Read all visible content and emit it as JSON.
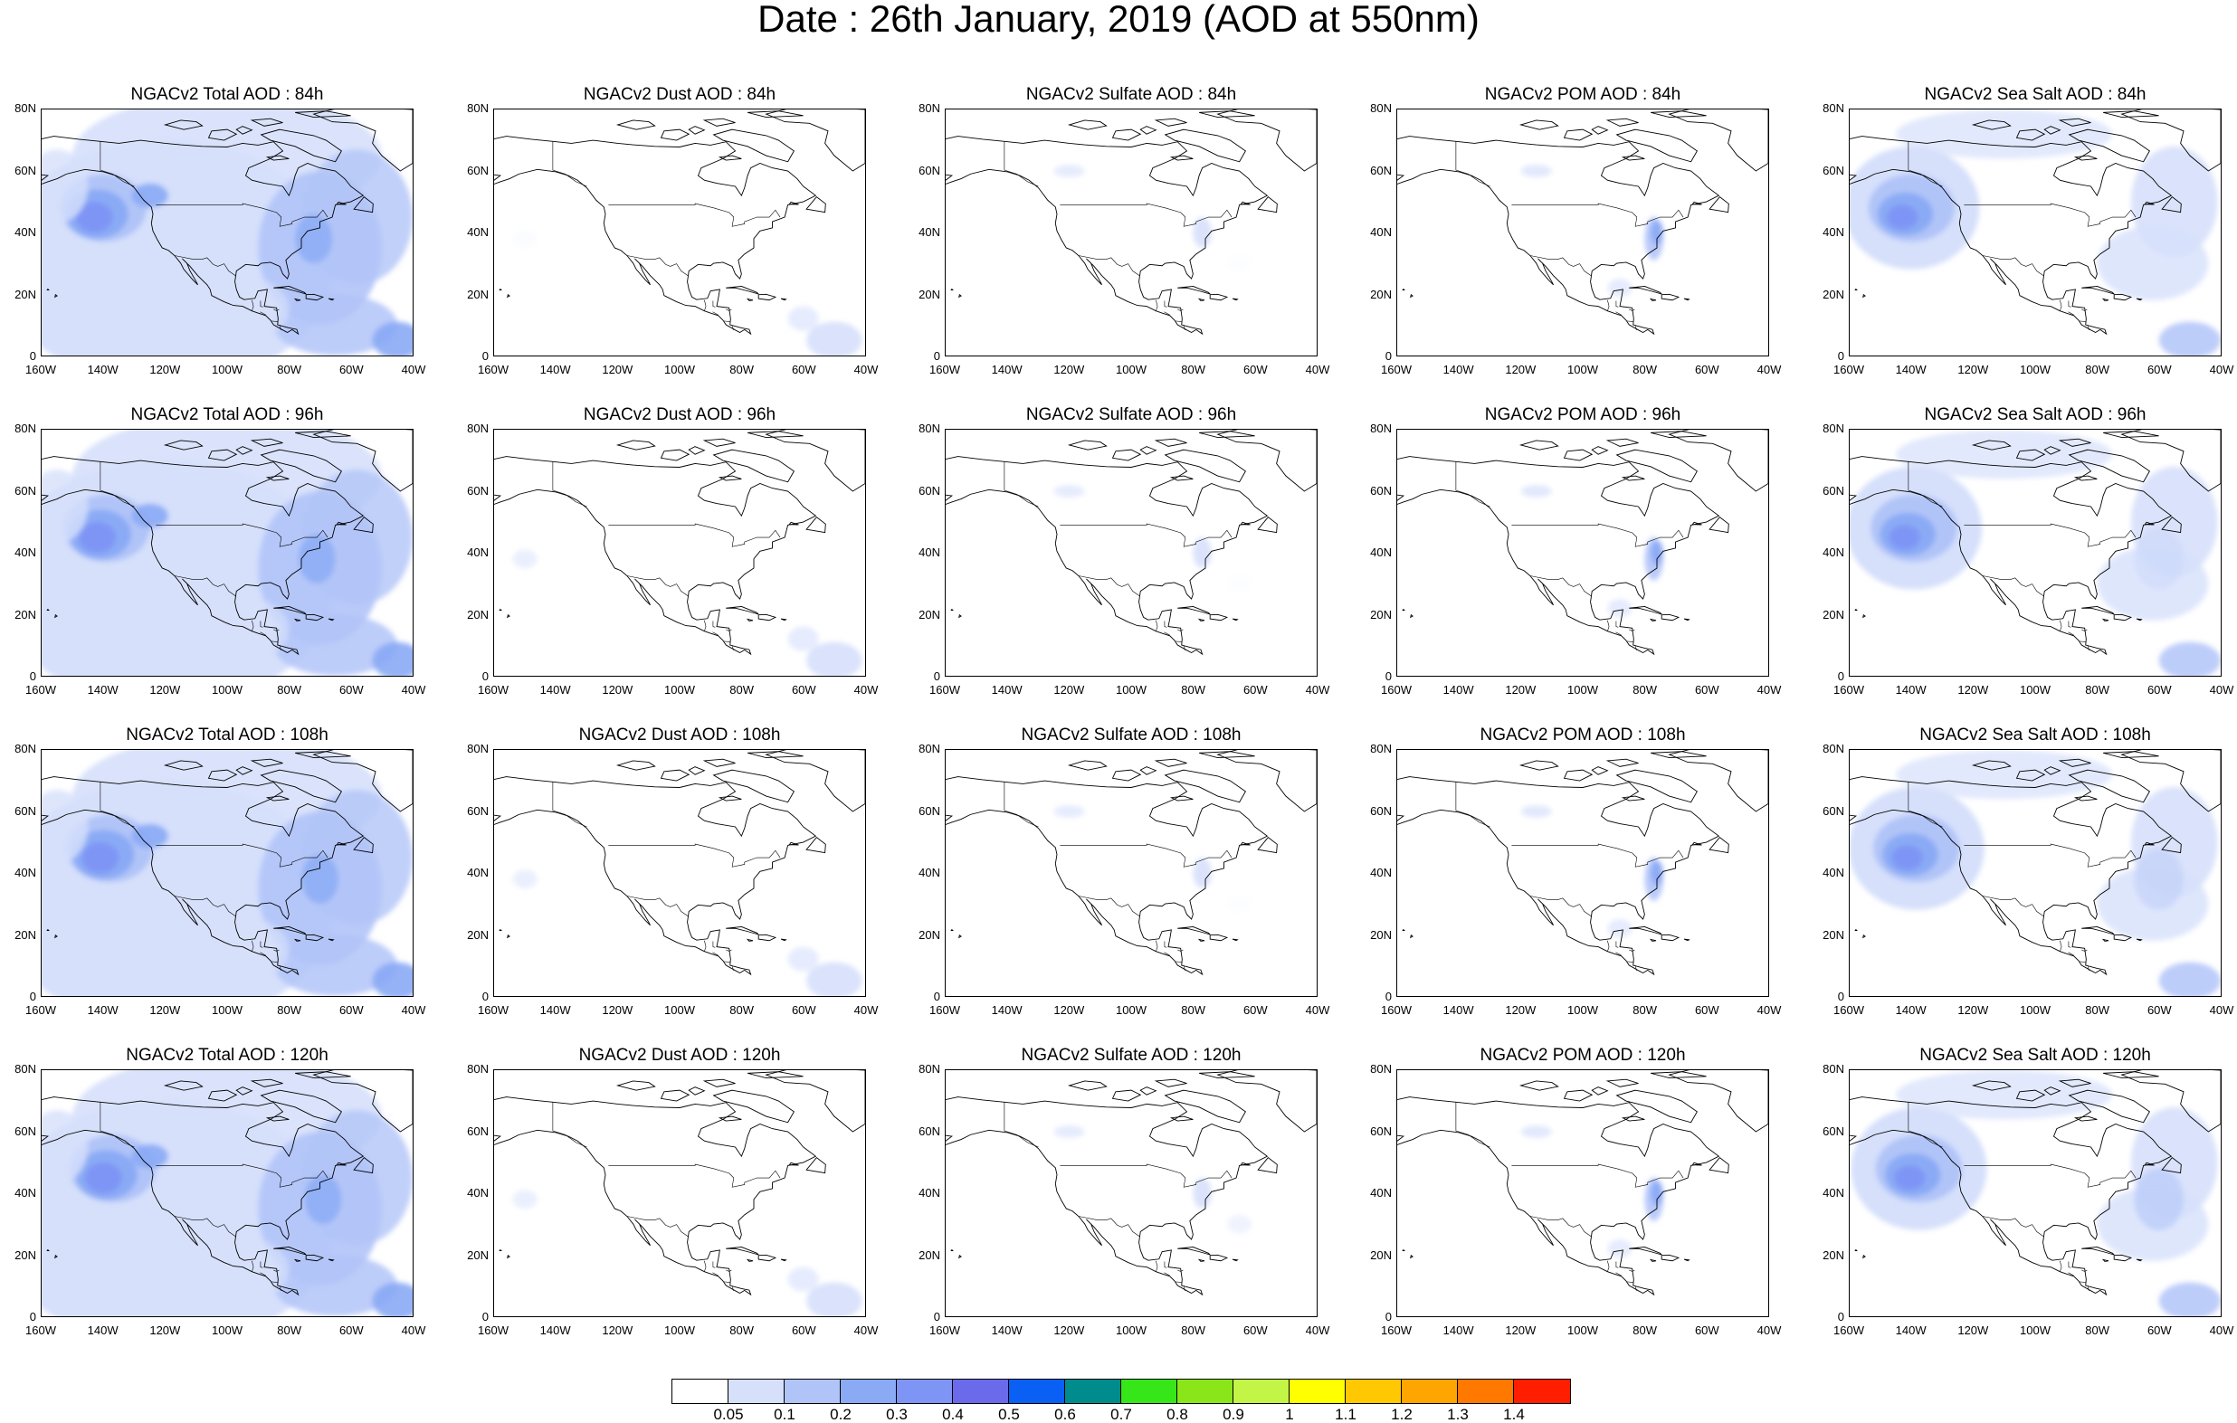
{
  "title": "Date : 26th January, 2019 (AOD at 550nm)",
  "panel_titles": [
    [
      "NGACv2 Total AOD : 84h",
      "NGACv2 Dust AOD : 84h",
      "NGACv2 Sulfate AOD : 84h",
      "NGACv2 POM AOD : 84h",
      "NGACv2 Sea Salt AOD : 84h"
    ],
    [
      "NGACv2 Total AOD : 96h",
      "NGACv2 Dust AOD : 96h",
      "NGACv2 Sulfate AOD : 96h",
      "NGACv2 POM AOD : 96h",
      "NGACv2 Sea Salt AOD : 96h"
    ],
    [
      "NGACv2 Total AOD : 108h",
      "NGACv2 Dust AOD : 108h",
      "NGACv2 Sulfate AOD : 108h",
      "NGACv2 POM AOD : 108h",
      "NGACv2 Sea Salt AOD : 108h"
    ],
    [
      "NGACv2 Total AOD : 120h",
      "NGACv2 Dust AOD : 120h",
      "NGACv2 Sulfate AOD : 120h",
      "NGACv2 POM AOD : 120h",
      "NGACv2 Sea Salt  AOD : 120h"
    ]
  ],
  "lat_labels": [
    "80N",
    "60N",
    "40N",
    "20N",
    "0"
  ],
  "lon_labels_odd": [
    "160W",
    "140W",
    "120W",
    "100W",
    "80W",
    "60W",
    "40W"
  ],
  "lon_labels_even": [
    "160W",
    "140W",
    "120W",
    "100W",
    "80W",
    "60W",
    "40W"
  ],
  "colorbar": {
    "colors": [
      "#ffffff",
      "#d6e0fb",
      "#b1c4f8",
      "#8aaaf5",
      "#7e95f5",
      "#6a6aea",
      "#0a5ff5",
      "#008c8c",
      "#37e619",
      "#8ae619",
      "#c2f546",
      "#ffff00",
      "#ffc800",
      "#ffa500",
      "#ff7800",
      "#ff1e00"
    ],
    "labels": [
      "0.05",
      "0.1",
      "0.2",
      "0.3",
      "0.4",
      "0.5",
      "0.6",
      "0.7",
      "0.8",
      "0.9",
      "1",
      "1.1",
      "1.2",
      "1.3",
      "1.4"
    ]
  }
}
